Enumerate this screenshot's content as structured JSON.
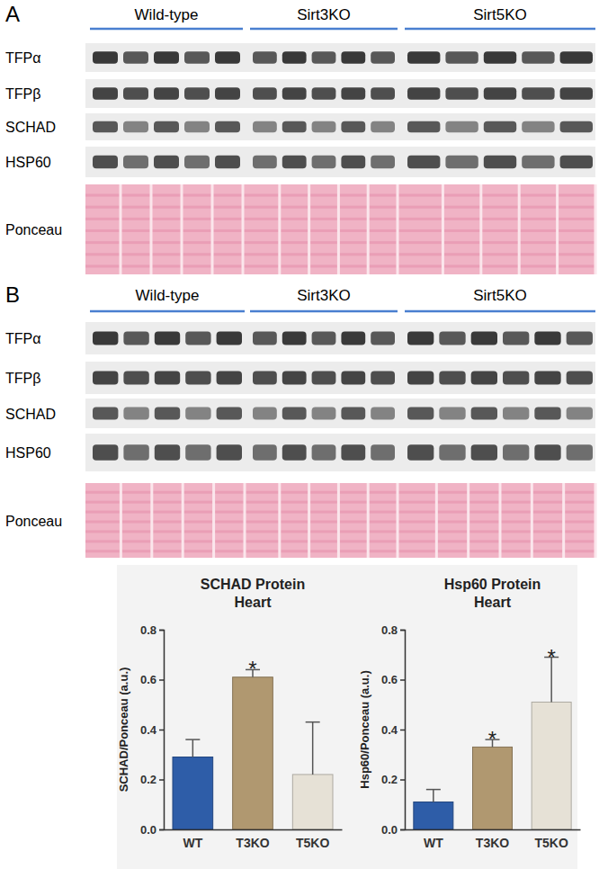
{
  "blots": [
    {
      "panel": "A",
      "groups": [
        "Wild-type",
        "Sirt3KO",
        "Sirt5KO"
      ],
      "rows": [
        "TFPα",
        "TFPβ",
        "SCHAD",
        "HSP60",
        "Ponceau"
      ]
    },
    {
      "panel": "B",
      "groups": [
        "Wild-type",
        "Sirt3KO",
        "Sirt5KO"
      ],
      "rows": [
        "TFPα",
        "TFPβ",
        "SCHAD",
        "HSP60",
        "Ponceau"
      ]
    }
  ],
  "chart_data": [
    {
      "type": "bar",
      "title": "SCHAD Protein\nHeart",
      "y_label": "SCHAD/Ponceau (a.u.)",
      "categories": [
        "WT",
        "T3KO",
        "T5KO"
      ],
      "values": [
        0.29,
        0.61,
        0.22
      ],
      "errors": [
        0.07,
        0.03,
        0.21
      ],
      "annotations": [
        null,
        "*",
        null
      ],
      "colors": [
        "#2e5da8",
        "#b09870",
        "#e6e1d6"
      ],
      "ylim": [
        0,
        0.8
      ],
      "yticks": [
        {
          "value": 0,
          "label": "0.0"
        },
        0.2,
        0.4,
        0.6,
        0.8
      ]
    },
    {
      "type": "bar",
      "title": "Hsp60 Protein\nHeart",
      "y_label": "Hsp60/Ponceau (a.u.)",
      "categories": [
        "WT",
        "T3KO",
        "T5KO"
      ],
      "values": [
        0.11,
        0.33,
        0.51
      ],
      "errors": [
        0.05,
        0.03,
        0.18
      ],
      "annotations": [
        null,
        "*",
        "*"
      ],
      "colors": [
        "#2e5da8",
        "#b09870",
        "#e6e1d6"
      ],
      "ylim": [
        0,
        0.8
      ],
      "yticks": [
        {
          "value": 0,
          "label": "0.0"
        },
        0.2,
        0.4,
        0.6,
        0.8
      ]
    }
  ]
}
